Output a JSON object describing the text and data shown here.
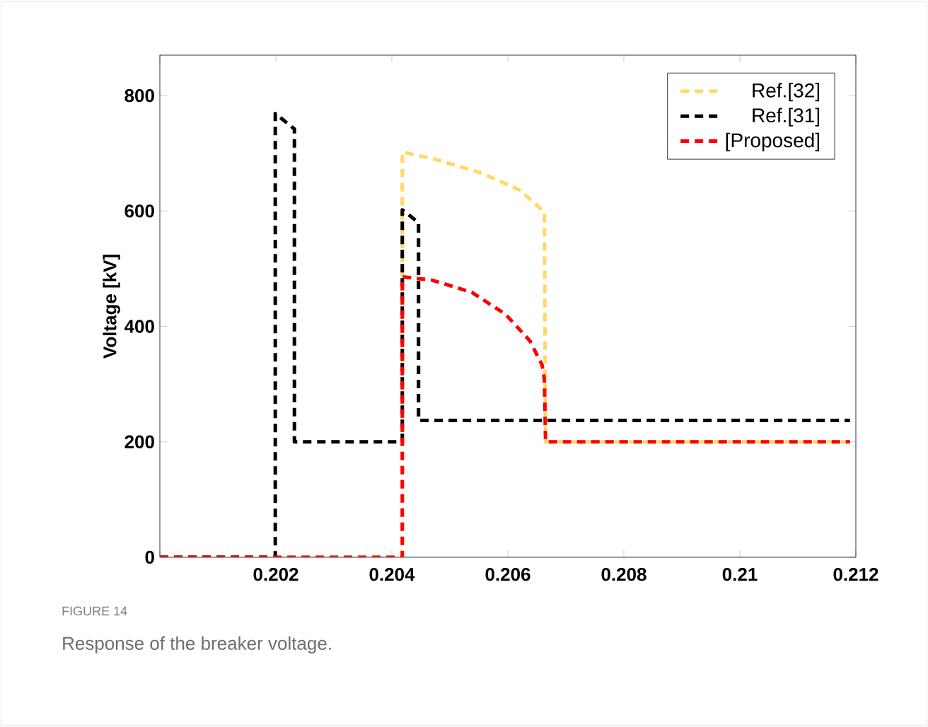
{
  "chart_data": {
    "type": "line",
    "ylabel": "Voltage [kV]",
    "xlim": [
      0.2,
      0.212
    ],
    "ylim": [
      0,
      870
    ],
    "xticks": [
      {
        "value": 0.2,
        "label": null
      },
      0.202,
      0.204,
      0.206,
      0.208,
      0.21,
      0.212
    ],
    "yticks": [
      0,
      200,
      400,
      600,
      800
    ],
    "legend": "top right",
    "line_style": "dashed",
    "marker": "none",
    "grid": false,
    "annotations": [
      "FIGURE 14",
      "Response of the breaker voltage."
    ],
    "series": [
      {
        "name": "Ref.[32]",
        "color": "#ffd966",
        "x": [
          0.2,
          0.20418,
          0.20418,
          0.2047,
          0.20554,
          0.20621,
          0.20663,
          0.20665,
          0.2119
        ],
        "values": [
          0,
          0,
          702,
          691,
          666,
          636,
          598,
          200,
          200
        ]
      },
      {
        "name": "Ref.[31]",
        "color": "#000000",
        "x": [
          0.2,
          0.20199,
          0.20199,
          0.20232,
          0.20232,
          0.20418,
          0.20418,
          0.20446,
          0.20446,
          0.2119
        ],
        "values": [
          0,
          0,
          769,
          742,
          200,
          200,
          602,
          580,
          237,
          237
        ]
      },
      {
        "name": "[Proposed]",
        "color": "#ff0000",
        "x": [
          0.2,
          0.20418,
          0.20418,
          0.2047,
          0.20538,
          0.20596,
          0.20638,
          0.20659,
          0.20663,
          0.20665,
          0.2119
        ],
        "values": [
          0,
          0,
          486,
          480,
          459,
          421,
          375,
          333,
          308,
          200,
          200
        ]
      }
    ]
  }
}
